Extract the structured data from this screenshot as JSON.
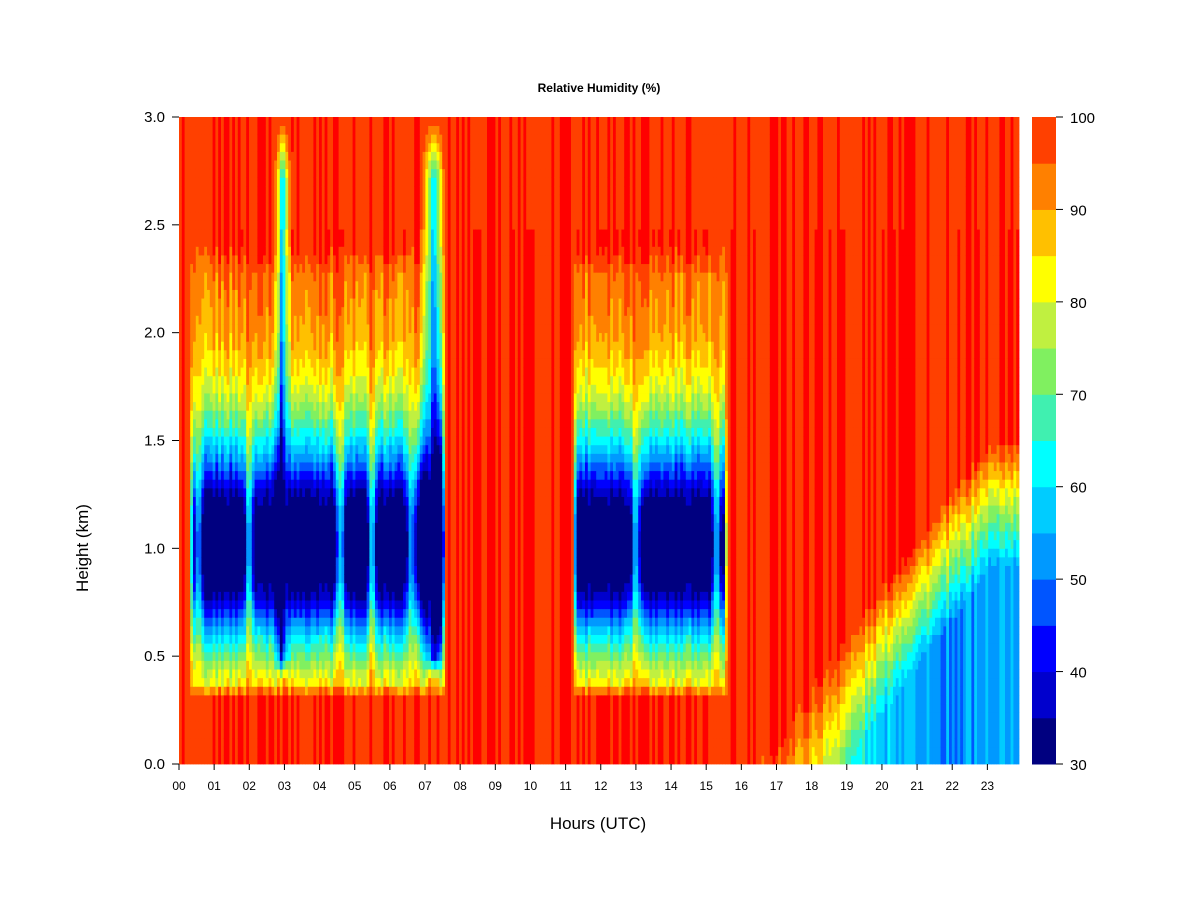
{
  "chart_data": {
    "type": "heatmap",
    "title": "Relative Humidity (%)",
    "xlabel": "Hours (UTC)",
    "ylabel": "Height (km)",
    "xlim": [
      0,
      23.9
    ],
    "ylim": [
      0,
      3.0
    ],
    "x_ticks": [
      "00",
      "01",
      "02",
      "03",
      "04",
      "05",
      "06",
      "07",
      "08",
      "09",
      "10",
      "11",
      "12",
      "13",
      "14",
      "15",
      "16",
      "17",
      "18",
      "19",
      "20",
      "21",
      "22",
      "23"
    ],
    "y_ticks": [
      "0.0",
      "0.5",
      "1.0",
      "1.5",
      "2.0",
      "2.5",
      "3.0"
    ],
    "colorbar": {
      "min": 30,
      "max": 100,
      "step": 5,
      "tick_labels": [
        "30",
        "40",
        "50",
        "60",
        "70",
        "80",
        "90",
        "100"
      ],
      "colors": [
        "#000080",
        "#0000CD",
        "#0000FF",
        "#0055FF",
        "#0099FF",
        "#00CCFF",
        "#00FFFF",
        "#40F0B0",
        "#80F060",
        "#C0F040",
        "#FFFF00",
        "#FFC000",
        "#FF8000",
        "#FF4000",
        "#FF0000",
        "#CC0000",
        "#800000",
        "#800000"
      ]
    },
    "features": {
      "dry_layer_periods_utc": [
        [
          0.3,
          7.6
        ],
        [
          11.2,
          15.6
        ]
      ],
      "dry_layer_base_km": 0.3,
      "dry_layer_top_km": 2.4,
      "driest_height_km": 1.0,
      "moist_plumes_utc": [
        0.0,
        0.55,
        2.0,
        3.0,
        4.6,
        5.5,
        6.6,
        7.2,
        11.1,
        13.0,
        15.3,
        17.8
      ],
      "surface_drying_after_utc": 16.5,
      "afternoon_mixed_layer_top_km": 1.5
    }
  }
}
